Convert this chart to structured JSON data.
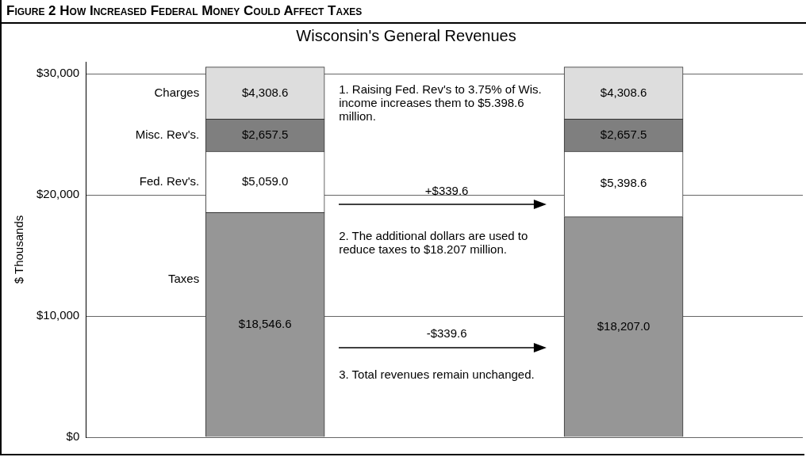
{
  "chart_data": {
    "type": "bar",
    "title": "Figure 2  How Increased Federal Money Could Affect Taxes",
    "subtitle": "Wisconsin's General Revenues",
    "ylabel": "$ Thousands",
    "categories": [
      null,
      null
    ],
    "stacked": true,
    "series": [
      {
        "name": "Taxes",
        "color": "#969696",
        "values": [
          18546.6,
          18207.0
        ],
        "value_labels": [
          "$18,546.6",
          "$18,207.0"
        ]
      },
      {
        "name": "Fed. Rev's.",
        "color": "#ffffff",
        "values": [
          5059.0,
          5398.6
        ],
        "value_labels": [
          "$5,059.0",
          "$5,398.6"
        ]
      },
      {
        "name": "Misc. Rev's.",
        "color": "#7f7f7f",
        "values": [
          2657.5,
          2657.5
        ],
        "value_labels": [
          "$2,657.5",
          "$2,657.5"
        ]
      },
      {
        "name": "Charges",
        "color": "#dddddd",
        "values": [
          4308.6,
          4308.6
        ],
        "value_labels": [
          "$4,308.6",
          "$4,308.6"
        ]
      }
    ],
    "ylim": [
      0,
      31000
    ],
    "yticks": [
      {
        "value": 0,
        "label": "$0"
      },
      {
        "value": 10000,
        "label": "$10,000"
      },
      {
        "value": 20000,
        "label": "$20,000"
      },
      {
        "value": 30000,
        "label": "$30,000"
      }
    ],
    "grid": "y",
    "legend": false,
    "annotations": [
      "1. Raising Fed. Rev's to 3.75% of Wis. income increases them to $5.398.6 million.",
      "+$339.6",
      "2. The additional dollars are used to reduce taxes to $18.207 million.",
      "-$339.6",
      "3. Total revenues remain unchanged."
    ]
  }
}
